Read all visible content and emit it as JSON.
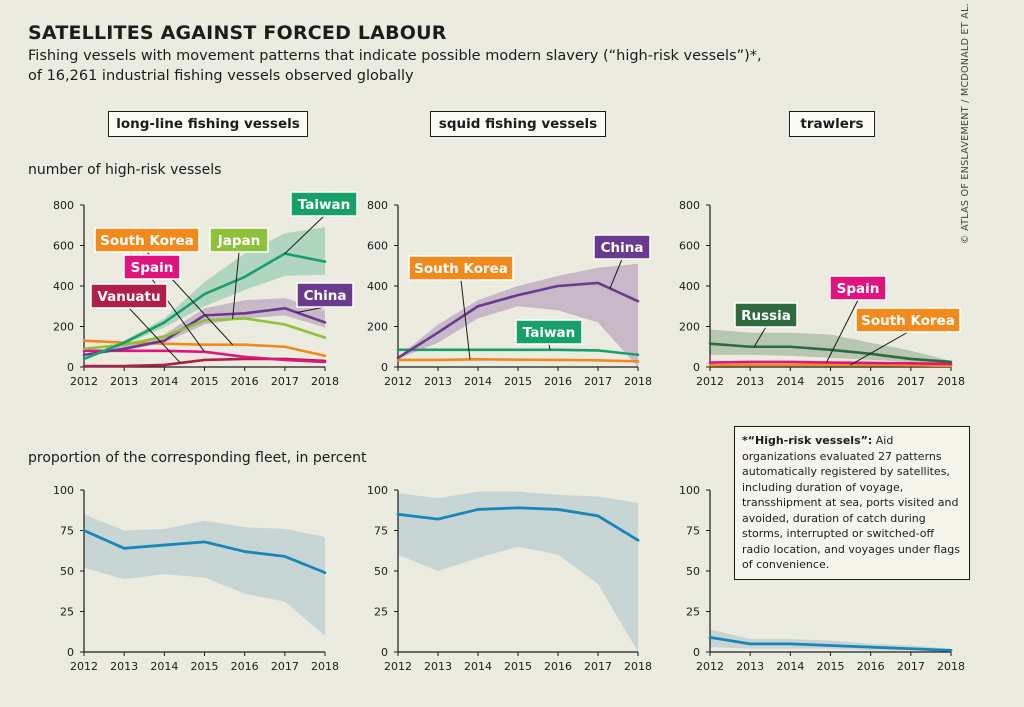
{
  "header": {
    "title": "SATELLITES AGAINST FORCED LABOUR",
    "subtitle_line1": "Fishing vessels with movement patterns that indicate possible modern slavery (“high-risk vessels”)*,",
    "subtitle_line2": "of 16,261 industrial fishing vessels observed globally",
    "credit": "© ATLAS OF ENSLAVEMENT / MCDONALD ET AL."
  },
  "sections": {
    "count_label": "number of high-risk vessels",
    "proportion_label": "proportion of the corresponding fleet, in percent"
  },
  "panel_titles": [
    "long-line fishing vessels",
    "squid fishing vessels",
    "trawlers"
  ],
  "footnote": {
    "heading": "*“High-risk vessels”:",
    "text": "Aid organizations evaluated 27 patterns automatically registered by satellites, including duration of voyage, transshipment at sea, ports visited and avoided, duration of catch during storms, interrupted or switched-off radio location, and voyages under flags of convenience."
  },
  "colors": {
    "Taiwan": "#17a06a",
    "South Korea": "#f08a1c",
    "Japan": "#8fc13a",
    "Spain": "#e0147f",
    "Vanuatu": "#b01e4a",
    "China": "#6a3a8f",
    "Russia": "#2e6a3e",
    "proportion": "#1a86b8",
    "band_blue": "#c7d6d4"
  },
  "chart_data": [
    {
      "type": "line",
      "title": "long-line fishing vessels",
      "ylabel": "number of high-risk vessels",
      "x": [
        2012,
        2013,
        2014,
        2015,
        2016,
        2017,
        2018
      ],
      "ylim": [
        0,
        800
      ],
      "yticks": [
        0,
        200,
        400,
        600,
        800
      ],
      "series": [
        {
          "name": "Taiwan",
          "values": [
            40,
            120,
            220,
            360,
            445,
            560,
            520
          ],
          "band_low": [
            40,
            110,
            195,
            300,
            380,
            450,
            455
          ],
          "band_high": [
            45,
            130,
            240,
            420,
            560,
            660,
            690
          ]
        },
        {
          "name": "Japan",
          "values": [
            90,
            110,
            150,
            230,
            240,
            210,
            145
          ]
        },
        {
          "name": "China",
          "values": [
            60,
            90,
            130,
            255,
            265,
            290,
            220
          ],
          "band_low": [
            60,
            80,
            120,
            210,
            240,
            255,
            195
          ],
          "band_high": [
            60,
            110,
            160,
            290,
            330,
            340,
            280
          ]
        },
        {
          "name": "South Korea",
          "values": [
            130,
            120,
            115,
            110,
            110,
            100,
            55
          ]
        },
        {
          "name": "Spain",
          "values": [
            80,
            80,
            80,
            75,
            50,
            35,
            25
          ]
        },
        {
          "name": "Vanuatu",
          "values": [
            5,
            5,
            10,
            35,
            40,
            40,
            30
          ]
        }
      ],
      "labels": [
        "Taiwan",
        "South Korea",
        "Japan",
        "Spain",
        "Vanuatu",
        "China"
      ]
    },
    {
      "type": "line",
      "title": "squid fishing vessels",
      "x": [
        2012,
        2013,
        2014,
        2015,
        2016,
        2017,
        2018
      ],
      "ylim": [
        0,
        800
      ],
      "yticks": [
        0,
        200,
        400,
        600,
        800
      ],
      "series": [
        {
          "name": "China",
          "values": [
            45,
            170,
            300,
            355,
            400,
            415,
            325
          ],
          "band_low": [
            40,
            120,
            240,
            300,
            280,
            220,
            0
          ],
          "band_high": [
            50,
            210,
            330,
            400,
            450,
            490,
            510
          ]
        },
        {
          "name": "Taiwan",
          "values": [
            85,
            85,
            85,
            85,
            85,
            82,
            60
          ]
        },
        {
          "name": "South Korea",
          "values": [
            35,
            35,
            38,
            36,
            35,
            33,
            28
          ]
        }
      ],
      "labels": [
        "South Korea",
        "Taiwan",
        "China"
      ]
    },
    {
      "type": "line",
      "title": "trawlers",
      "x": [
        2012,
        2013,
        2014,
        2015,
        2016,
        2017,
        2018
      ],
      "ylim": [
        0,
        800
      ],
      "yticks": [
        0,
        200,
        400,
        600,
        800
      ],
      "series": [
        {
          "name": "Russia",
          "values": [
            115,
            100,
            100,
            85,
            65,
            40,
            25
          ],
          "band_low": [
            60,
            60,
            55,
            45,
            35,
            25,
            15
          ],
          "band_high": [
            185,
            170,
            170,
            160,
            120,
            80,
            30
          ]
        },
        {
          "name": "Spain",
          "values": [
            22,
            25,
            25,
            22,
            20,
            18,
            15
          ]
        },
        {
          "name": "South Korea",
          "values": [
            8,
            10,
            10,
            10,
            10,
            8,
            6
          ]
        }
      ],
      "labels": [
        "Russia",
        "Spain",
        "South Korea"
      ]
    },
    {
      "type": "line",
      "title": "long-line fishing vessels",
      "ylabel": "proportion of the corresponding fleet, in percent",
      "x": [
        2012,
        2013,
        2014,
        2015,
        2016,
        2017,
        2018
      ],
      "ylim": [
        0,
        100
      ],
      "yticks": [
        0,
        25,
        50,
        75,
        100
      ],
      "series": [
        {
          "values": [
            75,
            64,
            66,
            68,
            62,
            59,
            49
          ],
          "band_low": [
            52,
            45,
            48,
            46,
            36,
            31,
            10
          ],
          "band_high": [
            85,
            75,
            76,
            81,
            77,
            76,
            71
          ]
        }
      ]
    },
    {
      "type": "line",
      "title": "squid fishing vessels",
      "x": [
        2012,
        2013,
        2014,
        2015,
        2016,
        2017,
        2018
      ],
      "ylim": [
        0,
        100
      ],
      "yticks": [
        0,
        25,
        50,
        75,
        100
      ],
      "series": [
        {
          "values": [
            85,
            82,
            88,
            89,
            88,
            84,
            69
          ],
          "band_low": [
            60,
            50,
            58,
            65,
            60,
            42,
            0
          ],
          "band_high": [
            98,
            95,
            99,
            99,
            97,
            96,
            92
          ]
        }
      ]
    },
    {
      "type": "line",
      "title": "trawlers",
      "x": [
        2012,
        2013,
        2014,
        2015,
        2016,
        2017,
        2018
      ],
      "ylim": [
        0,
        100
      ],
      "yticks": [
        0,
        25,
        50,
        75,
        100
      ],
      "series": [
        {
          "values": [
            9,
            5,
            5,
            4,
            3,
            2,
            1
          ],
          "band_low": [
            3,
            2,
            2,
            2,
            1,
            1,
            0
          ],
          "band_high": [
            14,
            8,
            8,
            7,
            5,
            4,
            2
          ]
        }
      ]
    }
  ]
}
